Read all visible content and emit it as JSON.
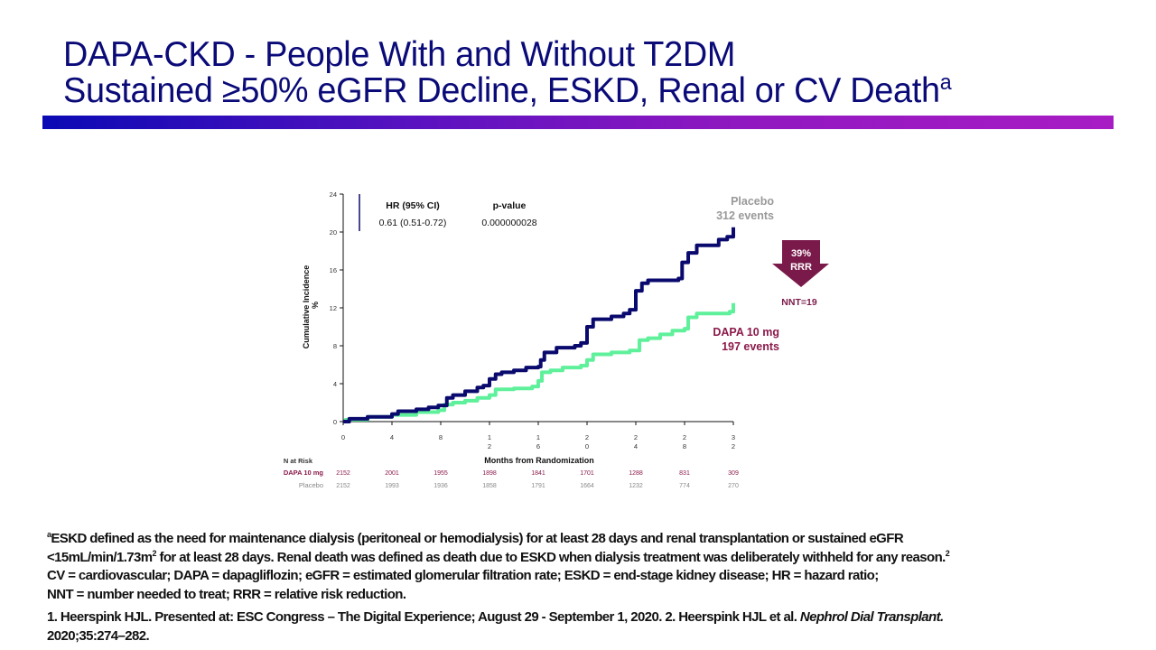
{
  "title": {
    "line1": "DAPA-CKD - People With and Without T2DM",
    "line2": "Sustained ≥50% eGFR Decline, ESKD, Renal or CV Death",
    "line2_sup": "a"
  },
  "colors": {
    "title": "#0a0a78",
    "placebo_line": "#0a0a6e",
    "dapa_line": "#5ef09a",
    "dapa_text": "#8b1a4a",
    "placebo_text": "#999999",
    "arrow": "#7a1a4a"
  },
  "chart_data": {
    "type": "line",
    "step": true,
    "xlabel": "Months from Randomization",
    "ylabel": "Cumulative Incidence",
    "ylabel_unit": "%",
    "xlim": [
      0,
      32
    ],
    "ylim": [
      0,
      24
    ],
    "x_ticks": [
      "0",
      "4",
      "8",
      "12",
      "16",
      "20",
      "24",
      "28",
      "32"
    ],
    "y_ticks": [
      "0",
      "4",
      "8",
      "12",
      "16",
      "20",
      "24"
    ],
    "grid": false,
    "series": [
      {
        "name": "Placebo",
        "events_label": "312 events",
        "x": [
          0.5,
          2,
          4,
          4.5,
          6,
          7,
          7.8,
          8.5,
          9,
          10,
          11,
          11.5,
          12,
          12.5,
          13,
          14,
          15,
          16,
          16.2,
          16.5,
          17.5,
          19,
          19.5,
          20,
          20.5,
          22,
          23,
          23.5,
          24,
          24.5,
          25,
          27.5,
          27.8,
          28.3,
          29,
          30.8,
          31.5,
          32
        ],
        "y": [
          0.3,
          0.5,
          0.8,
          1.1,
          1.3,
          1.5,
          1.7,
          2.5,
          2.8,
          3.2,
          3.6,
          3.8,
          4.5,
          5.0,
          5.2,
          5.4,
          5.7,
          5.8,
          6.5,
          7.3,
          7.8,
          8.0,
          8.3,
          10.0,
          10.8,
          11.1,
          11.4,
          11.8,
          13.8,
          14.6,
          14.9,
          15.1,
          16.8,
          17.8,
          18.6,
          19.2,
          19.5,
          20.5
        ]
      },
      {
        "name": "DAPA 10 mg",
        "events_label": "197 events",
        "x": [
          0.2,
          2,
          4,
          6,
          7.8,
          8.3,
          9,
          10,
          11,
          12,
          12.5,
          14,
          15.5,
          16,
          16.3,
          17,
          18,
          19.5,
          20,
          20.5,
          22,
          23.5,
          24.3,
          25,
          26,
          27,
          28,
          28.3,
          29,
          31.7,
          32
        ],
        "y": [
          0.2,
          0.5,
          0.7,
          1.0,
          1.2,
          1.8,
          2.0,
          2.2,
          2.5,
          2.8,
          3.4,
          3.5,
          3.7,
          4.3,
          5.2,
          5.4,
          5.7,
          5.9,
          6.5,
          7.1,
          7.3,
          7.5,
          8.6,
          8.8,
          9.2,
          9.6,
          9.8,
          11.0,
          11.4,
          11.6,
          12.5
        ]
      }
    ],
    "stats": {
      "hr_header": "HR (95% CI)",
      "hr_value": "0.61 (0.51-0.72)",
      "p_header": "p-value",
      "p_value": "0.000000028"
    },
    "annotation": {
      "rrr_pct": "39%",
      "rrr_label": "RRR",
      "nnt": "NNT=19"
    },
    "risk_table": {
      "title": "N at Risk",
      "rows": [
        {
          "label": "DAPA  10 mg",
          "values": [
            "2152",
            "2001",
            "1955",
            "1898",
            "1841",
            "1701",
            "1288",
            "831",
            "309"
          ]
        },
        {
          "label": "Placebo",
          "values": [
            "2152",
            "1993",
            "1936",
            "1858",
            "1791",
            "1664",
            "1232",
            "774",
            "270"
          ]
        }
      ]
    }
  },
  "footnotes": {
    "note_a_sup": "a",
    "note_a_line1": "ESKD defined as the need for maintenance dialysis (peritoneal or hemodialysis) for at least 28 days and renal transplantation or sustained eGFR",
    "note_a_line2_pre": "<15mL/min/1.73m",
    "note_a_line2_sup": "2",
    "note_a_line2_post": " for at least 28 days. Renal death was defined as death due to ESKD when dialysis treatment was deliberately withheld for any reason.",
    "note_a_line2_end_sup": "2",
    "abbrev_line1": "CV = cardiovascular; DAPA = dapagliflozin;  eGFR = estimated glomerular filtration rate; ESKD = end-stage kidney disease; HR = hazard ratio;",
    "abbrev_line2": "NNT = number needed to treat; RRR = relative risk reduction.",
    "ref_pre": "1. Heerspink HJL. Presented at: ESC Congress – The Digital Experience; August 29 - September 1, 2020. 2. Heerspink HJL et al. ",
    "ref_journal": "Nephrol Dial Transplant.",
    "ref_line2": "2020;35:274–282."
  }
}
